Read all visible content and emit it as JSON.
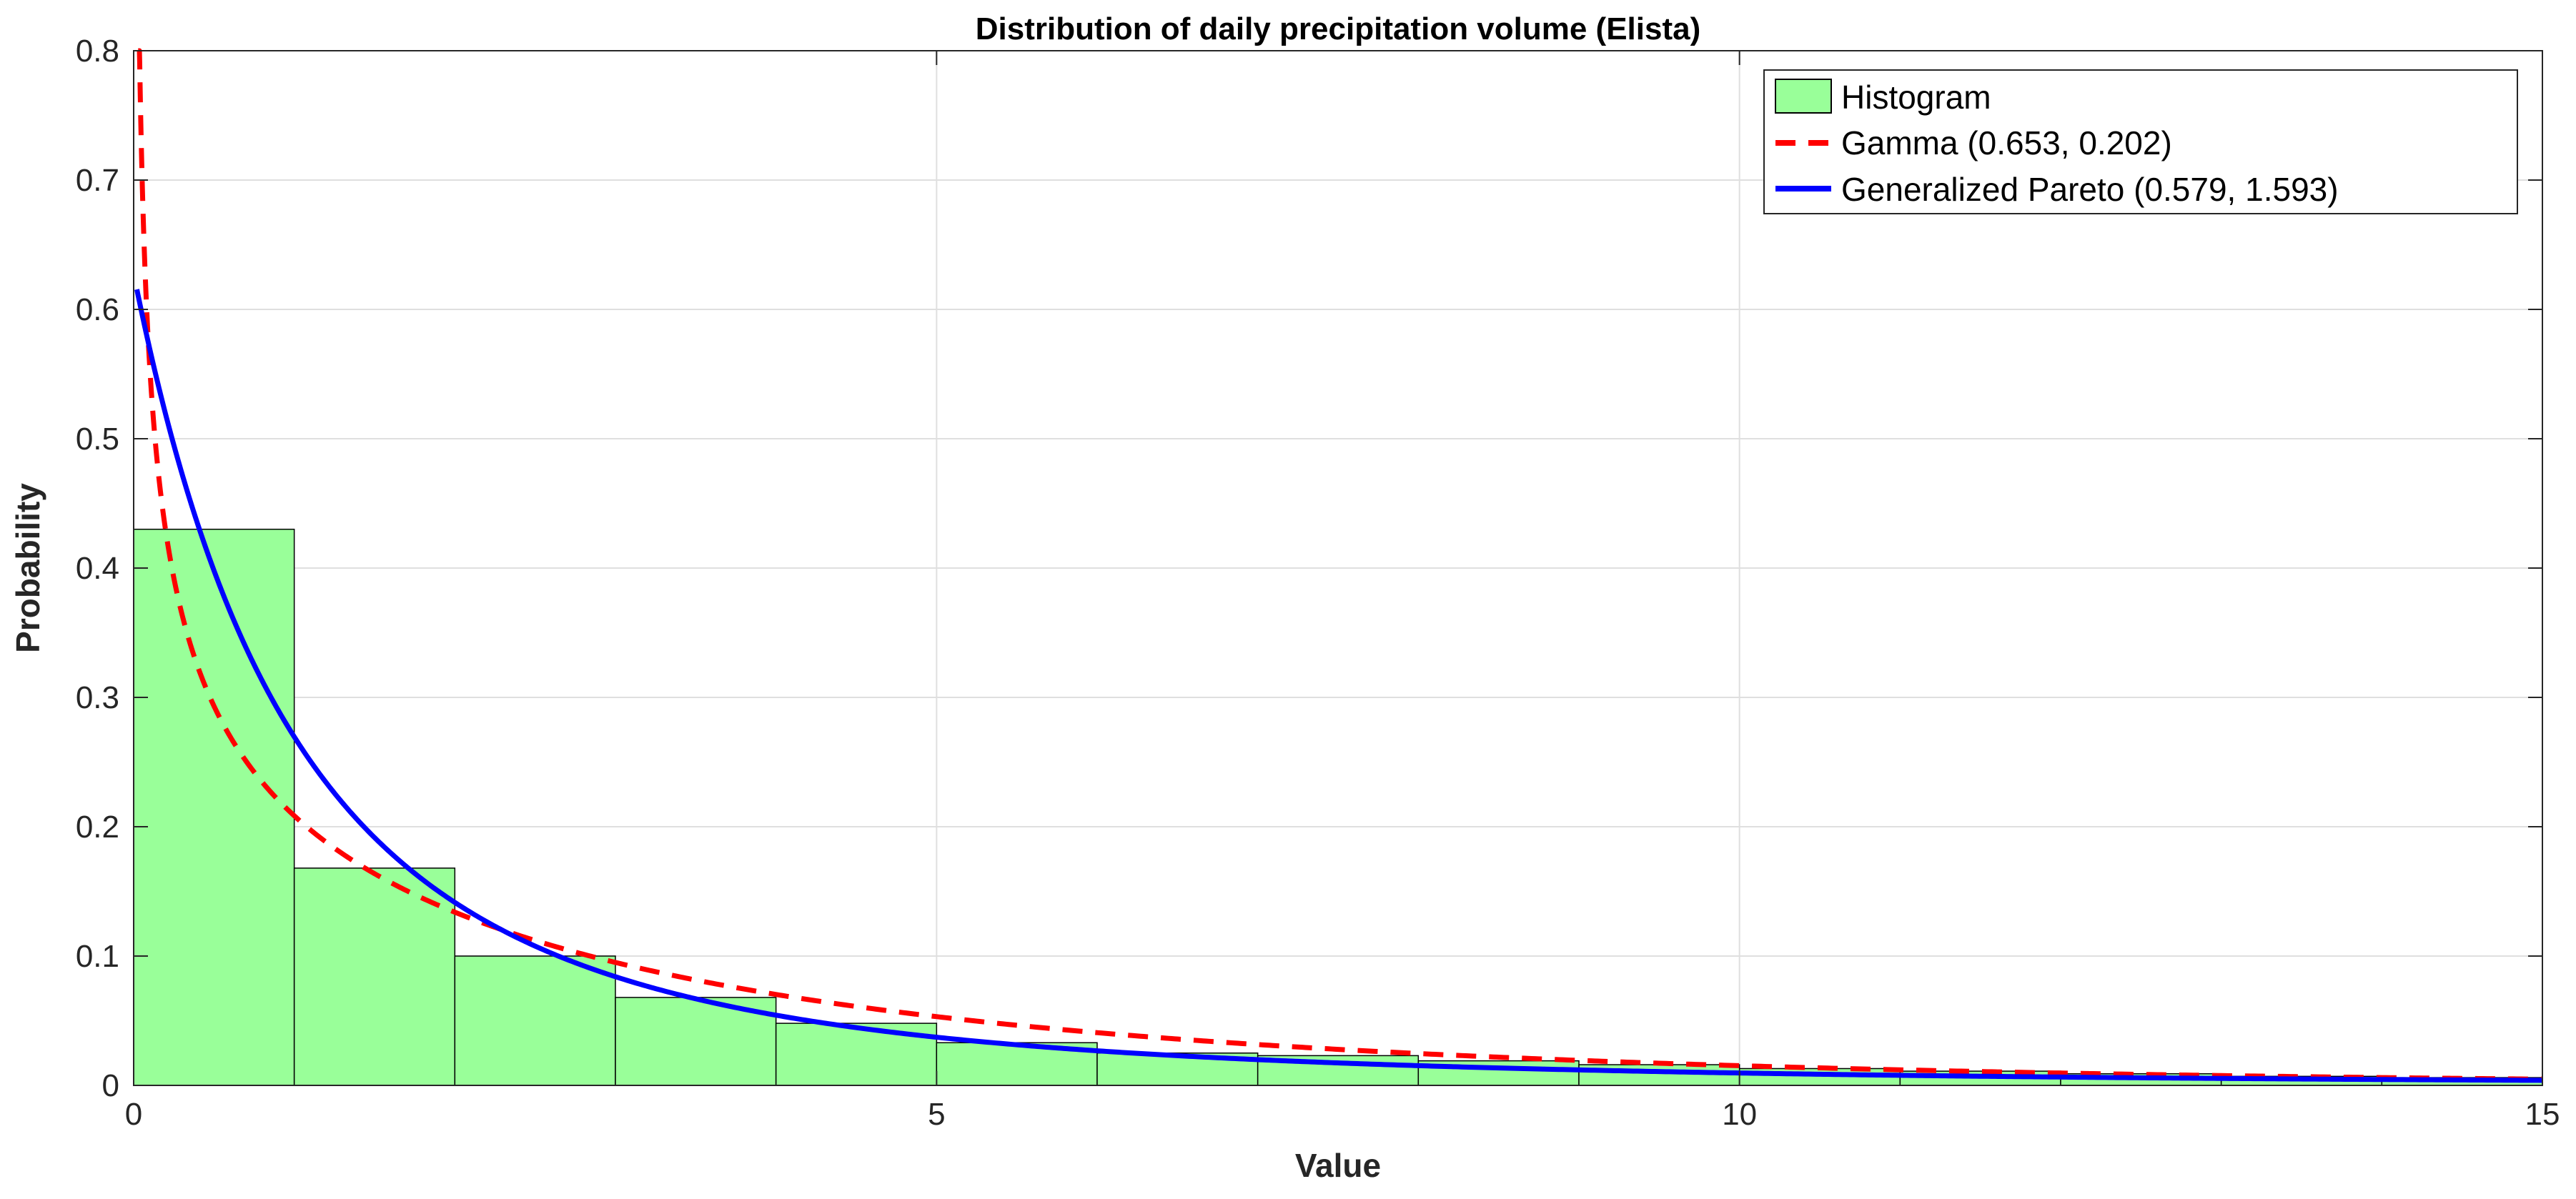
{
  "chart_data": {
    "type": "bar",
    "title": "Distribution of daily precipitation volume (Elista)",
    "xlabel": "Value",
    "ylabel": "Probability",
    "xlim": [
      0,
      15
    ],
    "ylim": [
      0,
      0.8
    ],
    "grid": true,
    "legend_position": "top-right",
    "x_ticks": [
      0,
      5,
      10,
      15
    ],
    "x_tick_labels": [
      "0",
      "5",
      "10",
      "15"
    ],
    "y_ticks": [
      0,
      0.1,
      0.2,
      0.3,
      0.4,
      0.5,
      0.6,
      0.7,
      0.8
    ],
    "y_tick_labels": [
      "0",
      "0.1",
      "0.2",
      "0.3",
      "0.4",
      "0.5",
      "0.6",
      "0.7",
      "0.8"
    ],
    "histogram": {
      "name": "Histogram",
      "bin_edges": [
        0,
        1,
        2,
        3,
        4,
        5,
        6,
        7,
        8,
        9,
        10,
        11,
        12,
        13,
        14,
        15
      ],
      "values": [
        0.43,
        0.168,
        0.1,
        0.068,
        0.048,
        0.033,
        0.025,
        0.023,
        0.019,
        0.016,
        0.013,
        0.011,
        0.009,
        0.007,
        0.006
      ],
      "color": "#99ff99",
      "edge_color": "#000000"
    },
    "series": [
      {
        "name": "Gamma (0.653, 0.202)",
        "kind": "gamma",
        "shape": 0.653,
        "rate": 0.202,
        "color": "#ff0000",
        "style": "dashed"
      },
      {
        "name": "Generalized Pareto (0.579, 1.593)",
        "kind": "generalized-pareto",
        "shape": 0.579,
        "scale": 1.593,
        "color": "#0000ff",
        "style": "solid"
      }
    ]
  }
}
